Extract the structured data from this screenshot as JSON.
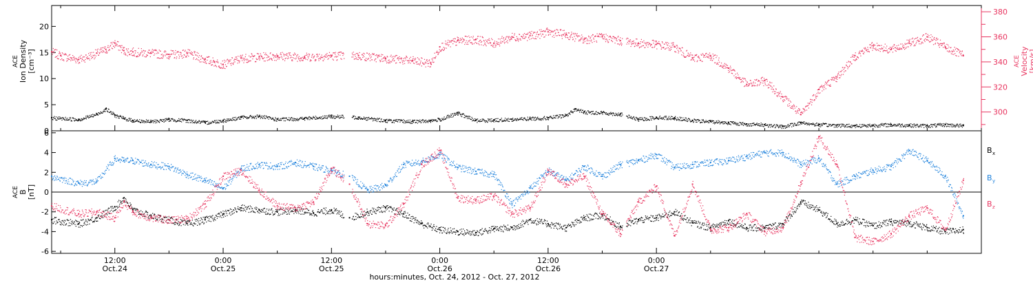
{
  "chart_data": [
    {
      "type": "scatter",
      "panel": "top",
      "x_unit": "hours since Oct. 24 00:00",
      "x_range_hours": [
        5,
        108
      ],
      "left_axis": {
        "label_lines": [
          "ACE",
          "Ion Density",
          "[cm⁻³]"
        ],
        "ylim": [
          0,
          24
        ],
        "ticks": [
          0,
          5,
          10,
          15,
          20
        ]
      },
      "right_axis": {
        "label_lines": [
          "ACE",
          "Velocity",
          "[km/s]"
        ],
        "ylim": [
          285,
          385
        ],
        "ticks": [
          300,
          320,
          340,
          360,
          380
        ],
        "color": "#e8335e"
      },
      "series": [
        {
          "color": "#000000",
          "axis": "left",
          "x": [
            5,
            8,
            10,
            11,
            12,
            13,
            14,
            16,
            18,
            20,
            22,
            24,
            26,
            28,
            30,
            33,
            36,
            39,
            42,
            45,
            47,
            48,
            50,
            52,
            54,
            56,
            58,
            60,
            62,
            63,
            64,
            66,
            68,
            70,
            72,
            74,
            76,
            78,
            80,
            82,
            84,
            86,
            88,
            90,
            92,
            94,
            96,
            98,
            100,
            102,
            104,
            106
          ],
          "y": [
            2.5,
            2.2,
            3.2,
            4.2,
            3.0,
            2.4,
            2.0,
            1.8,
            2.2,
            2.0,
            1.6,
            2.0,
            2.6,
            2.8,
            2.2,
            2.4,
            2.8,
            2.6,
            2.0,
            1.8,
            2.0,
            2.2,
            3.4,
            2.0,
            2.1,
            2.2,
            2.4,
            2.5,
            3.0,
            4.2,
            3.6,
            3.5,
            3.2,
            2.2,
            2.6,
            2.5,
            2.0,
            1.8,
            1.6,
            1.3,
            1.2,
            0.8,
            1.6,
            1.2,
            1.1,
            1.0,
            1.1,
            1.2,
            1.1,
            1.0,
            1.2,
            1.0
          ]
        },
        {
          "color": "#e8335e",
          "axis": "right",
          "x": [
            5,
            6,
            8,
            10,
            11,
            12,
            13,
            14,
            16,
            18,
            20,
            22,
            23,
            24,
            26,
            28,
            30,
            33,
            36,
            39,
            42,
            45,
            47,
            48,
            50,
            52,
            54,
            56,
            58,
            60,
            62,
            64,
            66,
            68,
            70,
            72,
            74,
            76,
            78,
            80,
            82,
            84,
            86,
            88,
            90,
            92,
            94,
            96,
            98,
            100,
            102,
            104,
            106
          ],
          "y": [
            348,
            345,
            342,
            347,
            350,
            355,
            349,
            348,
            347,
            346,
            347,
            342,
            340,
            338,
            343,
            344,
            345,
            344,
            345,
            345,
            343,
            341,
            339,
            352,
            357,
            358,
            355,
            360,
            361,
            364,
            362,
            358,
            360,
            357,
            355,
            354,
            352,
            343,
            345,
            335,
            322,
            325,
            312,
            298,
            318,
            328,
            345,
            353,
            350,
            355,
            360,
            352,
            345
          ]
        }
      ]
    },
    {
      "type": "scatter",
      "panel": "bottom",
      "x_unit": "hours since Oct. 24 00:00",
      "x_range_hours": [
        5,
        108
      ],
      "left_axis": {
        "label_lines": [
          "ACE",
          "B",
          "[nT]"
        ],
        "ylim": [
          -6.2,
          6.2
        ],
        "ticks": [
          -6,
          -4,
          -2,
          0,
          2,
          4,
          6
        ]
      },
      "zero_line": 0,
      "series": [
        {
          "name": "B",
          "name_sub": "x",
          "color": "#000000",
          "x": [
            5,
            8,
            10,
            12,
            13,
            14,
            16,
            18,
            20,
            22,
            24,
            26,
            28,
            30,
            32,
            34,
            36,
            38,
            40,
            42,
            44,
            46,
            48,
            50,
            52,
            54,
            56,
            58,
            60,
            62,
            64,
            66,
            68,
            70,
            72,
            74,
            76,
            78,
            80,
            82,
            84,
            86,
            88,
            90,
            92,
            94,
            96,
            98,
            100,
            102,
            104,
            106
          ],
          "y": [
            -2.8,
            -3.2,
            -2.6,
            -1.5,
            -0.6,
            -1.8,
            -2.4,
            -2.8,
            -3.2,
            -2.8,
            -2.2,
            -1.6,
            -1.8,
            -2.0,
            -1.8,
            -2.1,
            -1.8,
            -2.6,
            -2.0,
            -1.6,
            -2.2,
            -3.2,
            -3.8,
            -4.0,
            -4.1,
            -3.7,
            -3.6,
            -2.8,
            -3.2,
            -3.6,
            -2.6,
            -2.3,
            -3.5,
            -2.8,
            -2.6,
            -2.0,
            -3.1,
            -3.6,
            -2.9,
            -3.6,
            -3.6,
            -3.2,
            -1.0,
            -1.8,
            -3.2,
            -2.8,
            -3.4,
            -3.0,
            -3.1,
            -3.6,
            -4.0,
            -3.8
          ]
        },
        {
          "name": "B",
          "name_sub": "y",
          "color": "#1f82dc",
          "x": [
            5,
            8,
            10,
            12,
            13,
            14,
            16,
            18,
            20,
            22,
            24,
            26,
            28,
            30,
            32,
            34,
            36,
            38,
            40,
            42,
            44,
            46,
            48,
            50,
            52,
            54,
            56,
            58,
            60,
            62,
            64,
            66,
            68,
            70,
            72,
            74,
            76,
            78,
            80,
            82,
            84,
            86,
            88,
            90,
            92,
            94,
            96,
            98,
            100,
            102,
            104,
            106
          ],
          "y": [
            1.6,
            0.9,
            1.1,
            3.4,
            3.2,
            3.2,
            2.8,
            2.6,
            1.8,
            1.2,
            0.4,
            2.4,
            2.8,
            2.6,
            3.0,
            2.6,
            2.2,
            1.6,
            0.2,
            0.7,
            2.8,
            3.1,
            3.8,
            2.5,
            2.1,
            1.8,
            -1.2,
            0.4,
            2.2,
            1.2,
            2.6,
            1.6,
            2.8,
            3.2,
            3.8,
            2.5,
            2.8,
            3.0,
            3.2,
            3.6,
            4.0,
            4.0,
            2.8,
            3.4,
            0.8,
            1.6,
            2.2,
            2.6,
            4.2,
            3.2,
            1.6,
            -2.4
          ]
        },
        {
          "name": "B",
          "name_sub": "z",
          "color": "#e8335e",
          "x": [
            5,
            8,
            10,
            12,
            13,
            14,
            16,
            18,
            20,
            22,
            24,
            26,
            28,
            30,
            32,
            34,
            36,
            38,
            40,
            42,
            44,
            46,
            48,
            50,
            52,
            54,
            56,
            58,
            60,
            62,
            64,
            66,
            68,
            70,
            72,
            74,
            76,
            78,
            80,
            82,
            84,
            86,
            88,
            90,
            92,
            94,
            96,
            98,
            100,
            102,
            104,
            106
          ],
          "y": [
            -1.4,
            -2.2,
            -2.0,
            -2.6,
            -1.0,
            -2.0,
            -2.6,
            -2.8,
            -2.7,
            -1.2,
            1.6,
            2.2,
            0.2,
            -1.4,
            -1.6,
            -1.0,
            2.4,
            0.8,
            -3.2,
            -3.4,
            -1.2,
            2.8,
            4.2,
            -0.6,
            -0.8,
            -0.4,
            -2.2,
            -1.6,
            2.2,
            0.8,
            1.6,
            -2.2,
            -4.2,
            -1.0,
            0.6,
            -4.4,
            0.8,
            -3.8,
            -3.6,
            -2.2,
            -4.0,
            -3.6,
            1.0,
            5.6,
            2.8,
            -4.6,
            -5.0,
            -4.2,
            -2.4,
            -1.6,
            -3.8,
            1.2
          ]
        }
      ]
    }
  ],
  "x_axis": {
    "ticks": [
      {
        "hours": 12,
        "time": "12:00",
        "date": "Oct.24"
      },
      {
        "hours": 24,
        "time": "0:00",
        "date": "Oct.25"
      },
      {
        "hours": 36,
        "time": "12:00",
        "date": "Oct.25"
      },
      {
        "hours": 48,
        "time": "0:00",
        "date": "Oct.26"
      },
      {
        "hours": 60,
        "time": "12:00",
        "date": "Oct.26"
      },
      {
        "hours": 72,
        "time": "0:00",
        "date": "Oct.27"
      }
    ],
    "title": "hours:minutes, Oct. 24, 2012 - Oct. 27, 2012"
  },
  "legend": [
    {
      "name": "B",
      "sub": "x",
      "color": "#000000"
    },
    {
      "name": "B",
      "sub": "y",
      "color": "#1f82dc"
    },
    {
      "name": "B",
      "sub": "z",
      "color": "#e8335e"
    }
  ],
  "colors": {
    "frame": "#000000",
    "accent_red": "#e8335e",
    "accent_blue": "#1f82dc"
  }
}
